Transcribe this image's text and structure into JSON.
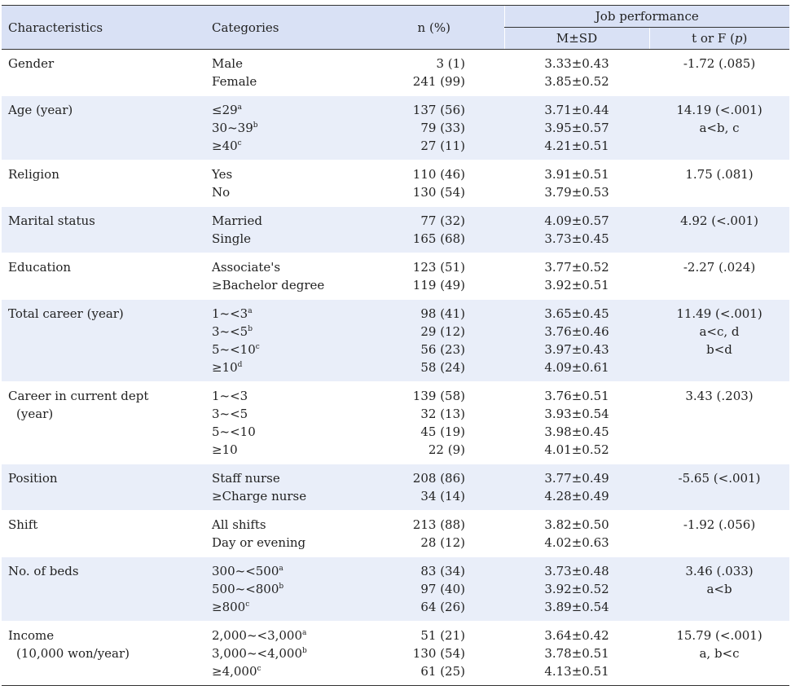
{
  "header": {
    "characteristics": "Characteristics",
    "categories": "Categories",
    "n_pct": "n (%)",
    "job_performance": "Job performance",
    "m_sd": "M±SD",
    "t_or_f": "t or F (",
    "p": "p",
    "close": ")"
  },
  "rows": [
    {
      "char": [
        "Gender"
      ],
      "cats": [
        {
          "t": "Male"
        },
        {
          "t": "Female"
        }
      ],
      "n": [
        "3 (1)",
        "241 (99)"
      ],
      "msd": [
        "3.33±0.43",
        "3.85±0.52"
      ],
      "stat": [
        "-1.72 (.085)"
      ]
    },
    {
      "char": [
        "Age (year)"
      ],
      "cats": [
        {
          "t": "≤29",
          "s": "a"
        },
        {
          "t": "30~39",
          "s": "b"
        },
        {
          "t": "≥40",
          "s": "c"
        }
      ],
      "n": [
        "137 (56)",
        "79 (33)",
        "27 (11)"
      ],
      "msd": [
        "3.71±0.44",
        "3.95±0.57",
        "4.21±0.51"
      ],
      "stat": [
        "14.19 (<.001)",
        "a<b, c"
      ]
    },
    {
      "char": [
        "Religion"
      ],
      "cats": [
        {
          "t": "Yes"
        },
        {
          "t": "No"
        }
      ],
      "n": [
        "110 (46)",
        "130 (54)"
      ],
      "msd": [
        "3.91±0.51",
        "3.79±0.53"
      ],
      "stat": [
        "1.75 (.081)"
      ]
    },
    {
      "char": [
        "Marital status"
      ],
      "cats": [
        {
          "t": "Married"
        },
        {
          "t": "Single"
        }
      ],
      "n": [
        "77 (32)",
        "165 (68)"
      ],
      "msd": [
        "4.09±0.57",
        "3.73±0.45"
      ],
      "stat": [
        "4.92 (<.001)"
      ]
    },
    {
      "char": [
        "Education"
      ],
      "cats": [
        {
          "t": "Associate's"
        },
        {
          "t": "≥Bachelor degree"
        }
      ],
      "n": [
        "123 (51)",
        "119 (49)"
      ],
      "msd": [
        "3.77±0.52",
        "3.92±0.51"
      ],
      "stat": [
        "-2.27 (.024)"
      ]
    },
    {
      "char": [
        "Total career (year)"
      ],
      "cats": [
        {
          "t": "1~<3",
          "s": "a"
        },
        {
          "t": "3~<5",
          "s": "b"
        },
        {
          "t": "5~<10",
          "s": "c"
        },
        {
          "t": "≥10",
          "s": "d"
        }
      ],
      "n": [
        "98 (41)",
        "29 (12)",
        "56 (23)",
        "58 (24)"
      ],
      "msd": [
        "3.65±0.45",
        "3.76±0.46",
        "3.97±0.43",
        "4.09±0.61"
      ],
      "stat": [
        "11.49 (<.001)",
        "a<c, d",
        "b<d"
      ]
    },
    {
      "char": [
        "Career in current dept",
        "(year)"
      ],
      "cats": [
        {
          "t": "1~<3"
        },
        {
          "t": "3~<5"
        },
        {
          "t": "5~<10"
        },
        {
          "t": "≥10"
        }
      ],
      "n": [
        "139 (58)",
        "32 (13)",
        "45 (19)",
        "22 (9)"
      ],
      "msd": [
        "3.76±0.51",
        "3.93±0.54",
        "3.98±0.45",
        "4.01±0.52"
      ],
      "stat": [
        "3.43 (.203)"
      ]
    },
    {
      "char": [
        "Position"
      ],
      "cats": [
        {
          "t": "Staff nurse"
        },
        {
          "t": "≥Charge nurse"
        }
      ],
      "n": [
        "208 (86)",
        "34 (14)"
      ],
      "msd": [
        "3.77±0.49",
        "4.28±0.49"
      ],
      "stat": [
        "-5.65 (<.001)"
      ]
    },
    {
      "char": [
        "Shift"
      ],
      "cats": [
        {
          "t": "All shifts"
        },
        {
          "t": "Day or evening"
        }
      ],
      "n": [
        "213 (88)",
        "28 (12)"
      ],
      "msd": [
        "3.82±0.50",
        "4.02±0.63"
      ],
      "stat": [
        "-1.92 (.056)"
      ]
    },
    {
      "char": [
        "No. of beds"
      ],
      "cats": [
        {
          "t": "300~<500",
          "s": "a"
        },
        {
          "t": "500~<800",
          "s": "b"
        },
        {
          "t": "≥800",
          "s": "c"
        }
      ],
      "n": [
        "83 (34)",
        "97 (40)",
        "64 (26)"
      ],
      "msd": [
        "3.73±0.48",
        "3.92±0.52",
        "3.89±0.54"
      ],
      "stat": [
        "3.46 (.033)",
        "a<b"
      ]
    },
    {
      "char": [
        "Income",
        "(10,000 won/year)"
      ],
      "cats": [
        {
          "t": "2,000~<3,000",
          "s": "a"
        },
        {
          "t": "3,000~<4,000",
          "s": "b"
        },
        {
          "t": "≥4,000",
          "s": "c"
        }
      ],
      "n": [
        "51 (21)",
        "130 (54)",
        "61 (25)"
      ],
      "msd": [
        "3.64±0.42",
        "3.78±0.51",
        "4.13±0.51"
      ],
      "stat": [
        "15.79 (<.001)",
        "a, b<c"
      ]
    }
  ]
}
